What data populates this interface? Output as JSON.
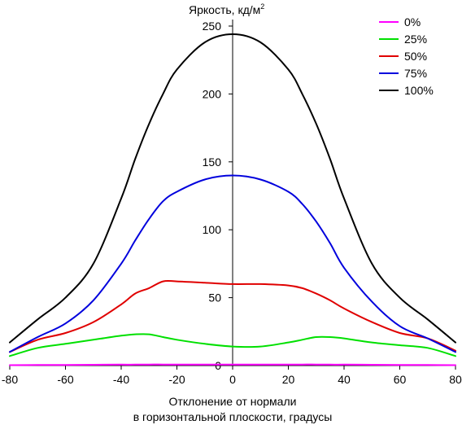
{
  "chart_data": {
    "type": "line",
    "title": "Яркость, кд/м",
    "title_sup": "2",
    "xlabel_line1": "Отклонение от нормали",
    "xlabel_line2": "в горизонтальной плоскости, градусы",
    "xlim": [
      -80,
      80
    ],
    "ylim": [
      0,
      250
    ],
    "xticks": [
      -80,
      -60,
      -40,
      -20,
      0,
      20,
      40,
      60,
      80
    ],
    "yticks": [
      0,
      50,
      100,
      150,
      200,
      250
    ],
    "legend_position": "top-right",
    "grid": false,
    "x": [
      -80,
      -70,
      -60,
      -50,
      -40,
      -35,
      -30,
      -25,
      -20,
      -10,
      0,
      10,
      20,
      25,
      30,
      35,
      40,
      50,
      60,
      70,
      80
    ],
    "series": [
      {
        "name": "0%",
        "color": "#ff00ff",
        "values": [
          0.3,
          0.4,
          0.5,
          0.6,
          0.7,
          0.7,
          0.8,
          0.8,
          0.8,
          0.8,
          0.8,
          0.8,
          0.8,
          0.8,
          0.8,
          0.7,
          0.7,
          0.6,
          0.5,
          0.4,
          0.3
        ]
      },
      {
        "name": "25%",
        "color": "#00e000",
        "values": [
          7,
          13,
          16,
          19,
          22,
          23,
          23,
          21,
          19,
          16,
          14,
          14,
          17,
          19,
          21,
          21,
          20,
          17,
          15,
          13,
          7
        ]
      },
      {
        "name": "50%",
        "color": "#e00000",
        "values": [
          10,
          19,
          24,
          32,
          45,
          53,
          57,
          62,
          62,
          61,
          60,
          60,
          59,
          57,
          53,
          48,
          42,
          32,
          24,
          20,
          11
        ]
      },
      {
        "name": "75%",
        "color": "#0000dd",
        "values": [
          10,
          21,
          31,
          48,
          75,
          92,
          108,
          121,
          128,
          137,
          140,
          137,
          128,
          119,
          106,
          90,
          72,
          47,
          29,
          20,
          10
        ]
      },
      {
        "name": "100%",
        "color": "#000000",
        "values": [
          17,
          34,
          50,
          75,
          123,
          152,
          178,
          200,
          218,
          238,
          244,
          238,
          218,
          200,
          178,
          152,
          123,
          75,
          50,
          34,
          17
        ]
      }
    ]
  }
}
